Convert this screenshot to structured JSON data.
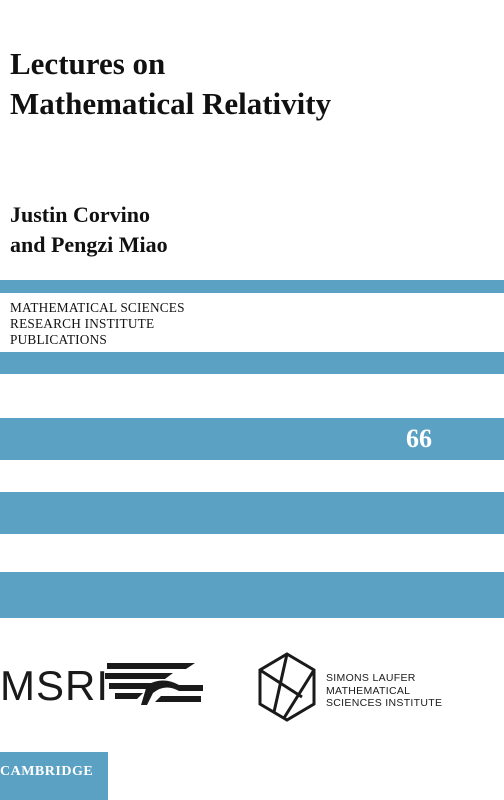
{
  "book": {
    "title_line1": "Lectures on",
    "title_line2": "Mathematical Relativity",
    "author_line1": "Justin Corvino",
    "author_line2": "and Pengzi Miao"
  },
  "series": {
    "line1": "MATHEMATICAL SCIENCES",
    "line2": "RESEARCH INSTITUTE",
    "line3": "PUBLICATIONS",
    "volume": "66"
  },
  "logos": {
    "msri": "MSRI",
    "slmath_line1": "SIMONS LAUFER",
    "slmath_line2": "MATHEMATICAL",
    "slmath_line3": "SCIENCES INSTITUTE"
  },
  "publisher": {
    "name": "CAMBRIDGE"
  },
  "colors": {
    "band": "#5ba1c3",
    "text": "#111111",
    "background": "#ffffff"
  }
}
